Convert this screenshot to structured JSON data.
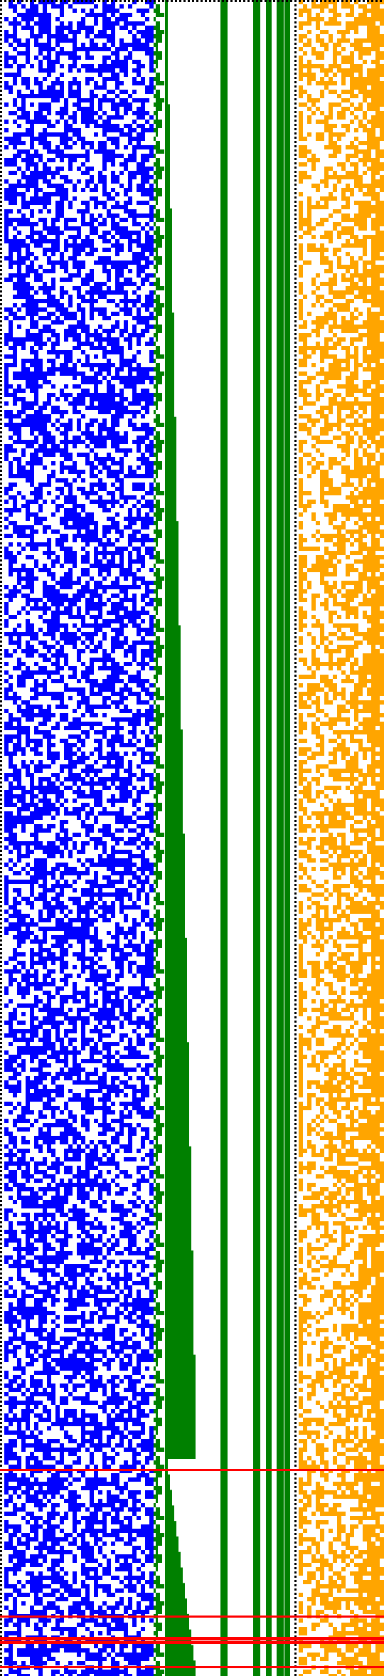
{
  "colors": {
    "background": "#ffffff",
    "blue_bits": "#0000ff",
    "green_bits": "#008000",
    "orange_bits": "#ffa500",
    "red_lines": "#ff0000",
    "dotted_borders": "#000000"
  },
  "panels": [
    {
      "name": "blue-bit-field",
      "color_key": "blue_bits",
      "description_visible": false
    },
    {
      "name": "green-bit-field",
      "color_key": "green_bits",
      "description_visible": false
    },
    {
      "name": "orange-bit-field",
      "color_key": "orange_bits",
      "description_visible": false
    }
  ],
  "green_solid_columns": 5,
  "red_horizontal_lines": 6
}
